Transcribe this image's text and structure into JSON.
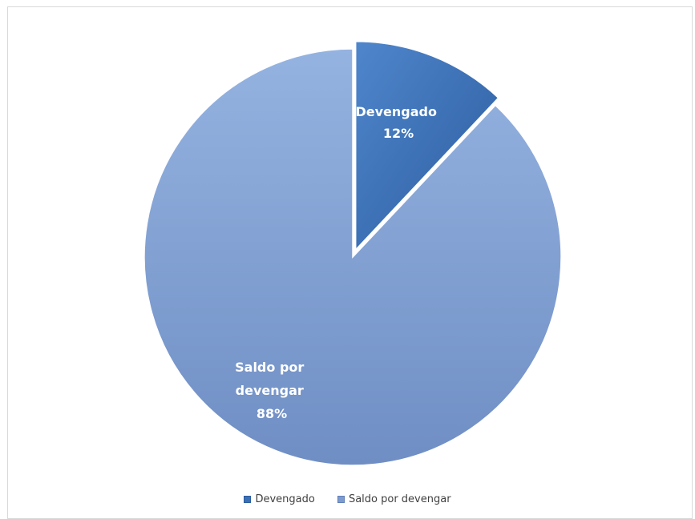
{
  "chart_data": {
    "type": "pie",
    "title": "",
    "slices": [
      {
        "name": "Devengado",
        "value": 12,
        "label_line1": "Devengado",
        "label_line2": "12%",
        "color": "#3b6fb6",
        "color_light": "#4a80c6",
        "exploded": true
      },
      {
        "name": "Saldo por devengar",
        "value": 88,
        "label_line1": "Saldo por",
        "label_line2": "devengar",
        "label_line3": "88%",
        "color": "#7d9bce",
        "color_light": "#94b1de",
        "exploded": false
      }
    ],
    "legend": {
      "position": "bottom",
      "items": [
        {
          "label": "Devengado",
          "color": "#3b6fb6"
        },
        {
          "label": "Saldo por devengar",
          "color": "#7d9bce"
        }
      ]
    }
  }
}
